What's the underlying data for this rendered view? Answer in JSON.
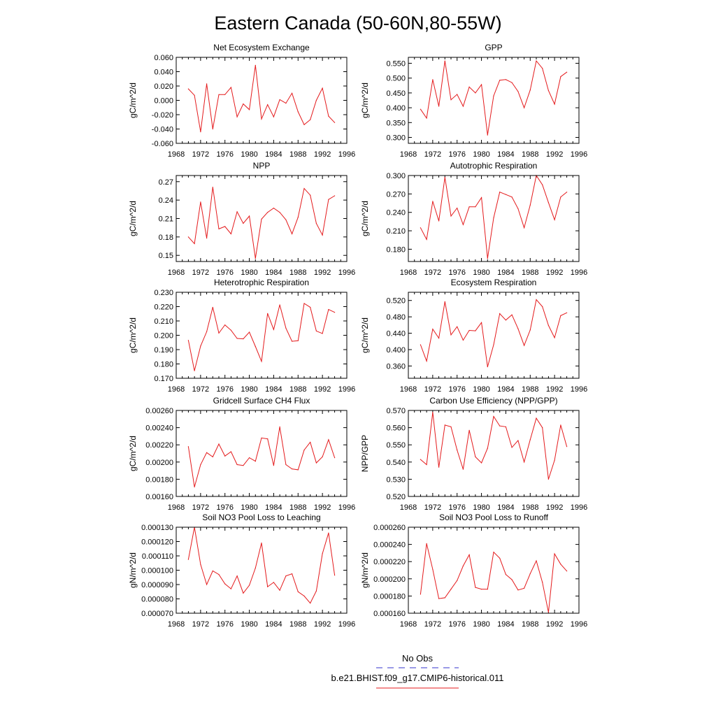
{
  "figure": {
    "title": "Eastern Canada (50-60N,80-55W)",
    "legend": {
      "obs_label": "No Obs",
      "obs_color": "#3333cc",
      "case_label": "b.e21.BHIST.f09_g17.CMIP6-historical.011",
      "case_color": "#e41a1c"
    }
  },
  "chart_data": [
    {
      "type": "line",
      "title": "Net Ecosystem Exchange",
      "ylabel": "gC/m^2/d",
      "xlim": [
        1968,
        1996
      ],
      "xticks": [
        1968,
        1972,
        1976,
        1980,
        1984,
        1988,
        1992,
        1996
      ],
      "ylim": [
        -0.06,
        0.06
      ],
      "yticks": [
        "-0.060",
        "-0.040",
        "-0.020",
        "0.000",
        "0.020",
        "0.040",
        "0.060"
      ],
      "x": [
        1970,
        1971,
        1972,
        1973,
        1974,
        1975,
        1976,
        1977,
        1978,
        1979,
        1980,
        1981,
        1982,
        1983,
        1984,
        1985,
        1986,
        1987,
        1988,
        1989,
        1990,
        1991,
        1992,
        1993,
        1994
      ],
      "series": [
        {
          "values": [
            0.016,
            0.007,
            -0.044,
            0.023,
            -0.04,
            0.008,
            0.008,
            0.018,
            -0.023,
            -0.005,
            -0.013,
            0.049,
            -0.026,
            -0.006,
            -0.023,
            0.001,
            -0.004,
            0.01,
            -0.016,
            -0.034,
            -0.027,
            0.0,
            0.017,
            -0.022,
            -0.031
          ]
        }
      ]
    },
    {
      "type": "line",
      "title": "GPP",
      "ylabel": "gC/m^2/d",
      "xlim": [
        1968,
        1996
      ],
      "xticks": [
        1968,
        1972,
        1976,
        1980,
        1984,
        1988,
        1992,
        1996
      ],
      "ylim": [
        0.28,
        0.57
      ],
      "yticks": [
        "0.300",
        "0.350",
        "0.400",
        "0.450",
        "0.500",
        "0.550"
      ],
      "x": [
        1970,
        1971,
        1972,
        1973,
        1974,
        1975,
        1976,
        1977,
        1978,
        1979,
        1980,
        1981,
        1982,
        1983,
        1984,
        1985,
        1986,
        1987,
        1988,
        1989,
        1990,
        1991,
        1992,
        1993,
        1994
      ],
      "series": [
        {
          "values": [
            0.395,
            0.365,
            0.495,
            0.405,
            0.558,
            0.427,
            0.445,
            0.405,
            0.47,
            0.45,
            0.478,
            0.308,
            0.44,
            0.493,
            0.495,
            0.485,
            0.455,
            0.4,
            0.46,
            0.558,
            0.533,
            0.458,
            0.412,
            0.505,
            0.52
          ]
        }
      ]
    },
    {
      "type": "line",
      "title": "NPP",
      "ylabel": "gC/m^2/d",
      "xlim": [
        1968,
        1996
      ],
      "xticks": [
        1968,
        1972,
        1976,
        1980,
        1984,
        1988,
        1992,
        1996
      ],
      "ylim": [
        0.14,
        0.28
      ],
      "yticks": [
        "0.15",
        "0.18",
        "0.21",
        "0.24",
        "0.27"
      ],
      "x": [
        1970,
        1971,
        1972,
        1973,
        1974,
        1975,
        1976,
        1977,
        1978,
        1979,
        1980,
        1981,
        1982,
        1983,
        1984,
        1985,
        1986,
        1987,
        1988,
        1989,
        1990,
        1991,
        1992,
        1993,
        1994
      ],
      "series": [
        {
          "values": [
            0.18,
            0.169,
            0.237,
            0.178,
            0.261,
            0.193,
            0.197,
            0.185,
            0.221,
            0.202,
            0.214,
            0.145,
            0.209,
            0.22,
            0.227,
            0.22,
            0.208,
            0.185,
            0.212,
            0.259,
            0.248,
            0.202,
            0.183,
            0.241,
            0.247
          ]
        }
      ]
    },
    {
      "type": "line",
      "title": "Autotrophic Respiration",
      "ylabel": "gC/m^2/d",
      "xlim": [
        1968,
        1996
      ],
      "xticks": [
        1968,
        1972,
        1976,
        1980,
        1984,
        1988,
        1992,
        1996
      ],
      "ylim": [
        0.16,
        0.3
      ],
      "yticks": [
        "0.180",
        "0.210",
        "0.240",
        "0.270",
        "0.300"
      ],
      "x": [
        1970,
        1971,
        1972,
        1973,
        1974,
        1975,
        1976,
        1977,
        1978,
        1979,
        1980,
        1981,
        1982,
        1983,
        1984,
        1985,
        1986,
        1987,
        1988,
        1989,
        1990,
        1991,
        1992,
        1993,
        1994
      ],
      "series": [
        {
          "values": [
            0.215,
            0.196,
            0.258,
            0.226,
            0.297,
            0.234,
            0.247,
            0.22,
            0.249,
            0.249,
            0.264,
            0.165,
            0.231,
            0.273,
            0.269,
            0.265,
            0.246,
            0.215,
            0.252,
            0.3,
            0.285,
            0.256,
            0.228,
            0.265,
            0.273
          ]
        }
      ]
    },
    {
      "type": "line",
      "title": "Heterotrophic Respiration",
      "ylabel": "gC/m^2/d",
      "xlim": [
        1968,
        1996
      ],
      "xticks": [
        1968,
        1972,
        1976,
        1980,
        1984,
        1988,
        1992,
        1996
      ],
      "ylim": [
        0.17,
        0.23
      ],
      "yticks": [
        "0.170",
        "0.180",
        "0.190",
        "0.200",
        "0.210",
        "0.220",
        "0.230"
      ],
      "x": [
        1970,
        1971,
        1972,
        1973,
        1974,
        1975,
        1976,
        1977,
        1978,
        1979,
        1980,
        1981,
        1982,
        1983,
        1984,
        1985,
        1986,
        1987,
        1988,
        1989,
        1990,
        1991,
        1992,
        1993,
        1994
      ],
      "series": [
        {
          "values": [
            0.1965,
            0.1752,
            0.1925,
            0.2025,
            0.2195,
            0.2015,
            0.2072,
            0.2035,
            0.1978,
            0.1975,
            0.2022,
            0.1922,
            0.1818,
            0.2152,
            0.204,
            0.2212,
            0.205,
            0.1958,
            0.1962,
            0.2222,
            0.2195,
            0.203,
            0.2012,
            0.218,
            0.216
          ]
        }
      ]
    },
    {
      "type": "line",
      "title": "Ecosystem Respiration",
      "ylabel": "gC/m^2/d",
      "xlim": [
        1968,
        1996
      ],
      "xticks": [
        1968,
        1972,
        1976,
        1980,
        1984,
        1988,
        1992,
        1996
      ],
      "ylim": [
        0.33,
        0.54
      ],
      "yticks": [
        "0.360",
        "0.400",
        "0.440",
        "0.480",
        "0.520"
      ],
      "x": [
        1970,
        1971,
        1972,
        1973,
        1974,
        1975,
        1976,
        1977,
        1978,
        1979,
        1980,
        1981,
        1982,
        1983,
        1984,
        1985,
        1986,
        1987,
        1988,
        1989,
        1990,
        1991,
        1992,
        1993,
        1994
      ],
      "series": [
        {
          "values": [
            0.412,
            0.372,
            0.45,
            0.428,
            0.517,
            0.436,
            0.456,
            0.423,
            0.447,
            0.446,
            0.466,
            0.358,
            0.412,
            0.488,
            0.472,
            0.485,
            0.451,
            0.41,
            0.448,
            0.522,
            0.505,
            0.459,
            0.429,
            0.483,
            0.49
          ]
        }
      ]
    },
    {
      "type": "line",
      "title": "Gridcell Surface CH4 Flux",
      "ylabel": "gC/m^2/d",
      "xlim": [
        1968,
        1996
      ],
      "xticks": [
        1968,
        1972,
        1976,
        1980,
        1984,
        1988,
        1992,
        1996
      ],
      "ylim": [
        0.0016,
        0.0026
      ],
      "yticks": [
        "0.00160",
        "0.00180",
        "0.00200",
        "0.00220",
        "0.00240",
        "0.00260"
      ],
      "x": [
        1970,
        1971,
        1972,
        1973,
        1974,
        1975,
        1976,
        1977,
        1978,
        1979,
        1980,
        1981,
        1982,
        1983,
        1984,
        1985,
        1986,
        1987,
        1988,
        1989,
        1990,
        1991,
        1992,
        1993,
        1994
      ],
      "series": [
        {
          "values": [
            0.00218,
            0.00171,
            0.00197,
            0.00211,
            0.00206,
            0.00221,
            0.00207,
            0.00212,
            0.00197,
            0.00196,
            0.00205,
            0.00201,
            0.00228,
            0.00227,
            0.00196,
            0.00241,
            0.00197,
            0.00192,
            0.00191,
            0.00214,
            0.00223,
            0.00199,
            0.00206,
            0.00226,
            0.00205
          ]
        }
      ]
    },
    {
      "type": "line",
      "title": "Carbon Use Efficiency (NPP/GPP)",
      "ylabel": "NPP/GPP",
      "xlim": [
        1968,
        1996
      ],
      "xticks": [
        1968,
        1972,
        1976,
        1980,
        1984,
        1988,
        1992,
        1996
      ],
      "ylim": [
        0.52,
        0.57
      ],
      "yticks": [
        "0.520",
        "0.530",
        "0.540",
        "0.550",
        "0.560",
        "0.570"
      ],
      "x": [
        1970,
        1971,
        1972,
        1973,
        1974,
        1975,
        1976,
        1977,
        1978,
        1979,
        1980,
        1981,
        1982,
        1983,
        1984,
        1985,
        1986,
        1987,
        1988,
        1989,
        1990,
        1991,
        1992,
        1993,
        1994
      ],
      "series": [
        {
          "values": [
            0.5415,
            0.5385,
            0.569,
            0.537,
            0.5615,
            0.5605,
            0.547,
            0.5358,
            0.5585,
            0.543,
            0.5395,
            0.548,
            0.5665,
            0.561,
            0.5605,
            0.5485,
            0.5525,
            0.54,
            0.553,
            0.5655,
            0.56,
            0.53,
            0.541,
            0.5615,
            0.549
          ]
        }
      ]
    },
    {
      "type": "line",
      "title": "Soil NO3 Pool Loss to Leaching",
      "ylabel": "gN/m^2/d",
      "xlim": [
        1968,
        1996
      ],
      "xticks": [
        1968,
        1972,
        1976,
        1980,
        1984,
        1988,
        1992,
        1996
      ],
      "ylim": [
        7e-05,
        0.00013
      ],
      "yticks": [
        "0.000070",
        "0.000080",
        "0.000090",
        "0.000100",
        "0.000110",
        "0.000120",
        "0.000130"
      ],
      "x": [
        1970,
        1971,
        1972,
        1973,
        1974,
        1975,
        1976,
        1977,
        1978,
        1979,
        1980,
        1981,
        1982,
        1983,
        1984,
        1985,
        1986,
        1987,
        1988,
        1989,
        1990,
        1991,
        1992,
        1993,
        1994
      ],
      "series": [
        {
          "values": [
            0.0001075,
            0.00013,
            0.000104,
            9e-05,
            9.95e-05,
            9.7e-05,
            9.05e-05,
            8.7e-05,
            9.6e-05,
            8.4e-05,
            8.95e-05,
            0.0001015,
            0.000119,
            8.85e-05,
            9.15e-05,
            8.6e-05,
            9.6e-05,
            9.75e-05,
            8.5e-05,
            8.2e-05,
            7.7e-05,
            8.55e-05,
            0.0001115,
            0.000126,
            9.65e-05
          ]
        }
      ]
    },
    {
      "type": "line",
      "title": "Soil NO3 Pool Loss to Runoff",
      "ylabel": "gN/m^2/d",
      "xlim": [
        1968,
        1996
      ],
      "xticks": [
        1968,
        1972,
        1976,
        1980,
        1984,
        1988,
        1992,
        1996
      ],
      "ylim": [
        0.00016,
        0.00026
      ],
      "yticks": [
        "0.000160",
        "0.000180",
        "0.000200",
        "0.000220",
        "0.000240",
        "0.000260"
      ],
      "x": [
        1970,
        1971,
        1972,
        1973,
        1974,
        1975,
        1976,
        1977,
        1978,
        1979,
        1980,
        1981,
        1982,
        1983,
        1984,
        1985,
        1986,
        1987,
        1988,
        1989,
        1990,
        1991,
        1992,
        1993,
        1994
      ],
      "series": [
        {
          "values": [
            0.000182,
            0.000241,
            0.000211,
            0.000177,
            0.000178,
            0.000188,
            0.000198,
            0.000215,
            0.000228,
            0.00019,
            0.000188,
            0.000188,
            0.000231,
            0.000224,
            0.000205,
            0.000199,
            0.000187,
            0.000189,
            0.000206,
            0.000221,
            0.000196,
            0.000161,
            0.000229,
            0.000217,
            0.000209
          ]
        }
      ]
    }
  ]
}
